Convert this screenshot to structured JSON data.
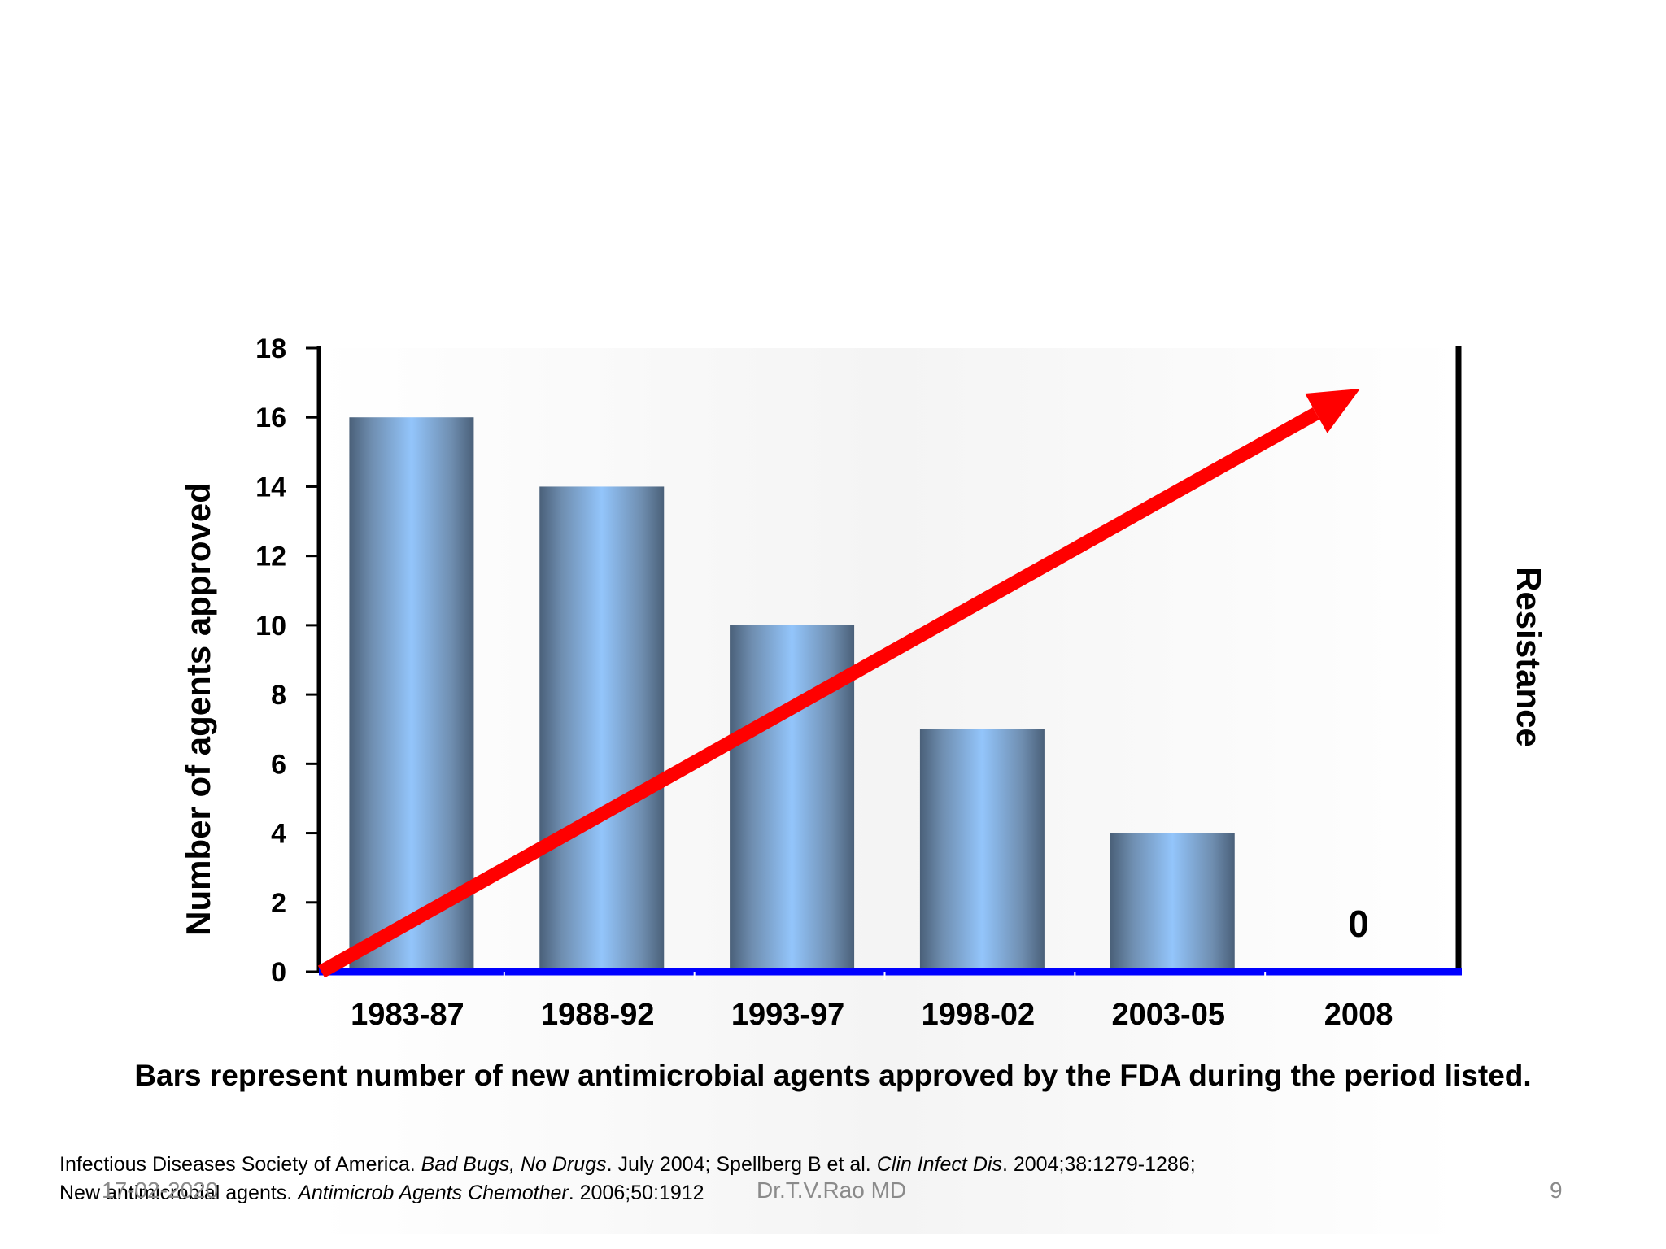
{
  "chart_data": {
    "type": "bar",
    "categories": [
      "1983-87",
      "1988-92",
      "1993-97",
      "1998-02",
      "2003-05",
      "2008"
    ],
    "values": [
      16,
      14,
      10,
      7,
      4,
      0
    ],
    "ylabel": "Number of agents approved",
    "y2label": "Resistance",
    "ylim": [
      0,
      18
    ],
    "yticks": [
      0,
      2,
      4,
      6,
      8,
      10,
      12,
      14,
      16,
      18
    ],
    "zero_label": "0",
    "trend_arrow": {
      "description_label": "Resistance",
      "direction": "increasing",
      "color": "#ff0000"
    },
    "bar_color": "#93c5fb",
    "axis_color": "#0000ff",
    "grid": false
  },
  "caption": "Bars represent number of new antimicrobial agents approved by the FDA during the period listed.",
  "reference": {
    "line1_a": "Infectious Diseases Society of America. ",
    "line1_b": "Bad Bugs, No Drugs",
    "line1_c": ". July 2004; Spellberg B et al. ",
    "line1_d": "Clin Infect Dis",
    "line1_e": ". 2004;38:1279-1286;",
    "line2_a": "New antimicrobial agents.  ",
    "line2_b": "Antimicrob Agents Chemother",
    "line2_c": ". 2006;50:1912"
  },
  "footer": {
    "date": "17-02-2020",
    "author": "Dr.T.V.Rao MD",
    "page": "9"
  }
}
